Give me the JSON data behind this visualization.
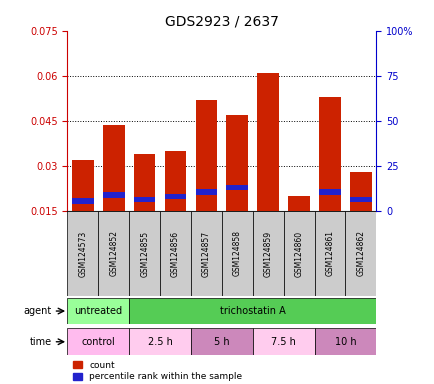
{
  "title": "GDS2923 / 2637",
  "samples": [
    "GSM124573",
    "GSM124852",
    "GSM124855",
    "GSM124856",
    "GSM124857",
    "GSM124858",
    "GSM124859",
    "GSM124860",
    "GSM124861",
    "GSM124862"
  ],
  "red_values": [
    0.032,
    0.0435,
    0.034,
    0.035,
    0.052,
    0.047,
    0.061,
    0.02,
    0.053,
    0.028
  ],
  "blue_values": [
    0.0175,
    0.0195,
    0.018,
    0.019,
    0.0205,
    0.022,
    0.022,
    0.0,
    0.0205,
    0.018
  ],
  "blue_heights": [
    0.0018,
    0.0018,
    0.0018,
    0.0018,
    0.0018,
    0.0018,
    0.0,
    0.0,
    0.0018,
    0.0018
  ],
  "ylim_left": [
    0.015,
    0.075
  ],
  "yticks_left": [
    0.015,
    0.03,
    0.045,
    0.06,
    0.075
  ],
  "yticks_right": [
    0,
    25,
    50,
    75,
    100
  ],
  "ylabel_left_color": "#cc0000",
  "ylabel_right_color": "#0000cc",
  "bar_width": 0.7,
  "agent_row": [
    {
      "label": "untreated",
      "span": [
        0,
        2
      ],
      "color": "#99ff99"
    },
    {
      "label": "trichostatin A",
      "span": [
        2,
        10
      ],
      "color": "#55cc55"
    }
  ],
  "time_row": [
    {
      "label": "control",
      "span": [
        0,
        2
      ],
      "color": "#ffbbee"
    },
    {
      "label": "2.5 h",
      "span": [
        2,
        4
      ],
      "color": "#ffccee"
    },
    {
      "label": "5 h",
      "span": [
        4,
        6
      ],
      "color": "#cc88bb"
    },
    {
      "label": "7.5 h",
      "span": [
        6,
        8
      ],
      "color": "#ffccee"
    },
    {
      "label": "10 h",
      "span": [
        8,
        10
      ],
      "color": "#cc88bb"
    }
  ],
  "legend_red_label": "count",
  "legend_blue_label": "percentile rank within the sample",
  "red_color": "#cc2200",
  "blue_color": "#2222cc",
  "background_color": "#ffffff",
  "sample_bg_color": "#cccccc",
  "grid_color": "#000000"
}
